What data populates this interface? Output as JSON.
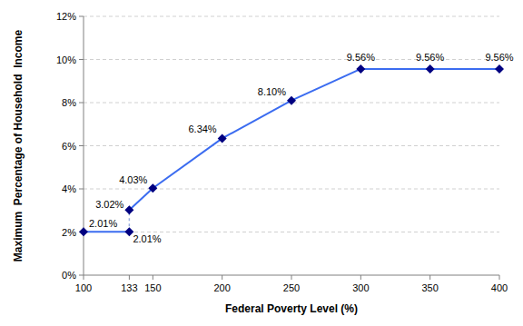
{
  "chart_data": {
    "type": "line",
    "x_label": "Federal Poverty Level (%)",
    "y_label": "Maximum  Percentage of Household  Income",
    "x": [
      100,
      133,
      133,
      150,
      200,
      250,
      300,
      350,
      400
    ],
    "series": [
      {
        "name": "Maximum Percentage of Household Income",
        "color": "#3b6cf0",
        "marker": "diamond",
        "line_style": "solid",
        "values": [
          2.01,
          2.01,
          3.02,
          4.03,
          6.34,
          8.1,
          9.56,
          9.56,
          9.56
        ],
        "value_labels": [
          "2.01%",
          "2.01%",
          "3.02%",
          "4.03%",
          "6.34%",
          "8.10%",
          "9.56%",
          "9.56%",
          "9.56%"
        ]
      }
    ],
    "xlim": [
      100,
      400
    ],
    "xticks": [
      100,
      133,
      150,
      200,
      250,
      300,
      350,
      400
    ],
    "ylim": [
      0,
      12
    ],
    "yticks": [
      {
        "value": 0,
        "label": "0%"
      },
      {
        "value": 2,
        "label": "2%"
      },
      {
        "value": 4,
        "label": "4%"
      },
      {
        "value": 6,
        "label": "6%"
      },
      {
        "value": 8,
        "label": "8%"
      },
      {
        "value": 10,
        "label": "10%"
      },
      {
        "value": 12,
        "label": "12%"
      }
    ],
    "grid": true,
    "data_labels": true
  }
}
